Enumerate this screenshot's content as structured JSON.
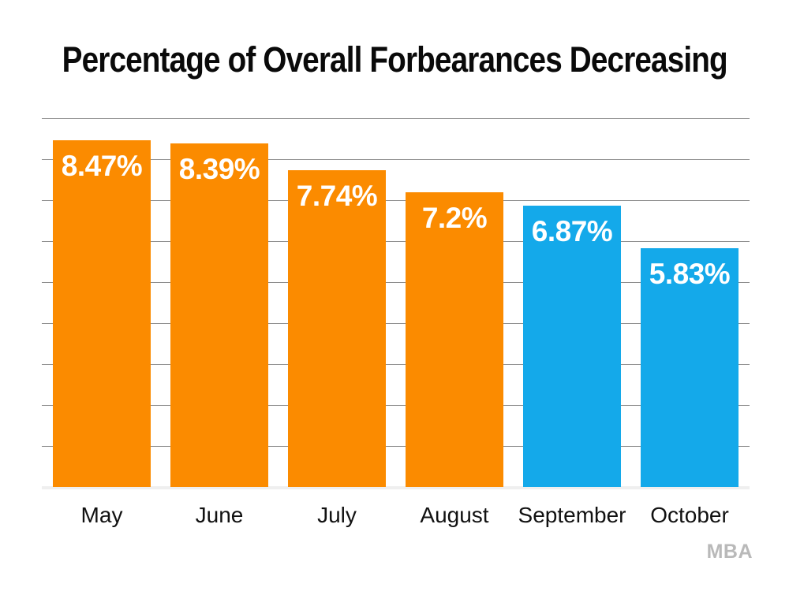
{
  "chart_data": {
    "type": "bar",
    "title": "Percentage of Overall Forbearances Decreasing",
    "categories": [
      "May",
      "June",
      "July",
      "August",
      "September",
      "October"
    ],
    "values": [
      8.47,
      8.39,
      7.74,
      7.2,
      6.87,
      5.83
    ],
    "value_labels": [
      "8.47%",
      "8.39%",
      "7.74%",
      "7.2%",
      "6.87%",
      "5.83%"
    ],
    "bar_colors": [
      "#FB8B00",
      "#FB8B00",
      "#FB8B00",
      "#FB8B00",
      "#14A9EA",
      "#14A9EA"
    ],
    "xlabel": "",
    "ylabel": "",
    "ylim": [
      0,
      9
    ],
    "gridline_interval": 1,
    "grid": true,
    "gridline_color": "#8E8E8E",
    "baseline_color": "#EFEFEF",
    "value_label_color": "#FFFFFF",
    "category_label_color": "#111111",
    "legend": "none",
    "source_label": "MBA"
  }
}
